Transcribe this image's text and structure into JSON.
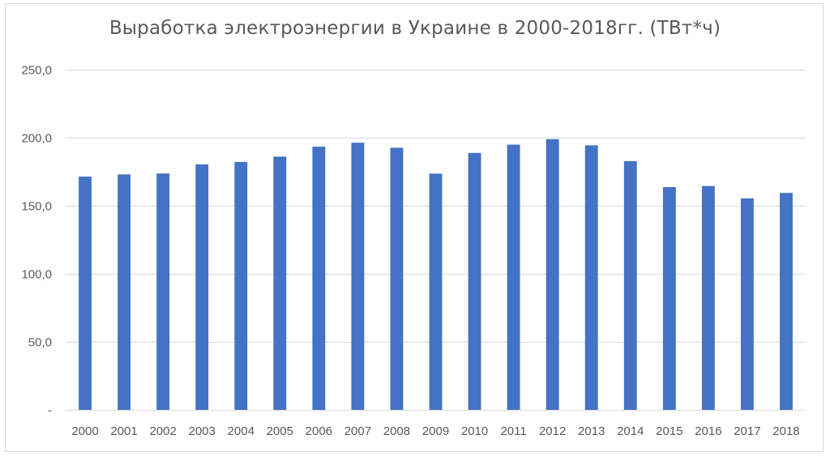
{
  "chart_data": {
    "type": "bar",
    "title": "Выработка электроэнергии в Украине в 2000-2018гг. (ТВт*ч)",
    "categories": [
      "2000",
      "2001",
      "2002",
      "2003",
      "2004",
      "2005",
      "2006",
      "2007",
      "2008",
      "2009",
      "2010",
      "2011",
      "2012",
      "2013",
      "2014",
      "2015",
      "2016",
      "2017",
      "2018"
    ],
    "values": [
      171.4,
      173.0,
      173.7,
      180.4,
      182.2,
      186.1,
      193.4,
      196.3,
      192.6,
      173.6,
      188.8,
      194.9,
      198.9,
      194.4,
      182.8,
      163.7,
      164.5,
      155.4,
      159.4
    ],
    "ylim": [
      0,
      250
    ],
    "yticks": [
      0,
      50,
      100,
      150,
      200,
      250
    ],
    "ytick_labels": [
      "-",
      "50,0",
      "100,0",
      "150,0",
      "200,0",
      "250,0"
    ],
    "xlabel": "",
    "ylabel": "",
    "grid": true,
    "legend": "none",
    "colors": {
      "bar": "#4472c4",
      "grid": "#d9d9d9",
      "text": "#595959"
    }
  }
}
